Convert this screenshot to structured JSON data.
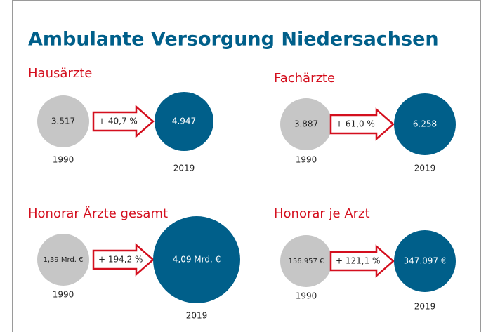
{
  "title": "Ambulante Versorgung Niedersachsen",
  "panels": [
    {
      "title": "Hausärzte",
      "before": {
        "value": "3.517",
        "year": "1990"
      },
      "change": "+ 40,7 %",
      "after": {
        "value": "4.947",
        "year": "2019"
      }
    },
    {
      "title": "Fachärzte",
      "before": {
        "value": "3.887",
        "year": "1990"
      },
      "change": "+ 61,0 %",
      "after": {
        "value": "6.258",
        "year": "2019"
      }
    },
    {
      "title": "Honorar Ärzte gesamt",
      "before": {
        "value": "1,39 Mrd. €",
        "year": "1990"
      },
      "change": "+ 194,2 %",
      "after": {
        "value": "4,09 Mrd. €",
        "year": "2019"
      }
    },
    {
      "title": "Honorar je Arzt",
      "before": {
        "value": "156.957 €",
        "year": "1990"
      },
      "change": "+ 121,1 %",
      "after": {
        "value": "347.097 €",
        "year": "2019"
      }
    }
  ]
}
